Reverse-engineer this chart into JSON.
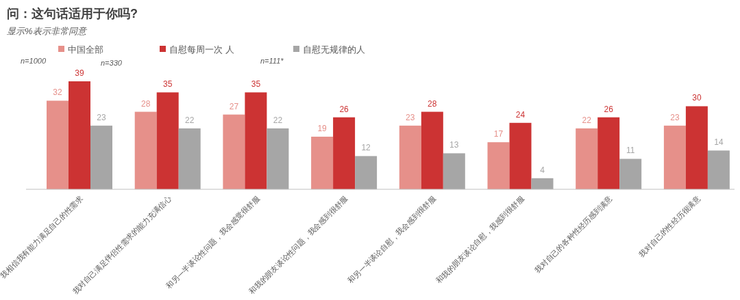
{
  "chart_data": {
    "type": "bar",
    "title": "问：这句话适用于你吗?",
    "subtitle": "显示%表示非常同意",
    "categories": [
      "我相信我有能力满足自己的性需求",
      "我对自己满足伴侣性需求的能力充满信心",
      "和另一半谈论性问题，我会感觉很舒服",
      "和我的朋友谈论性问题，我会感到很舒服",
      "和另一半谈论自慰，我会感到很舒服",
      "和我的朋友谈论自慰，我感到很舒服",
      "我对自己的各种性经历感到满意",
      "我对自己的性经历很满意"
    ],
    "series": [
      {
        "name": "中国全部",
        "color": "#e6908a",
        "values": [
          32,
          28,
          27,
          19,
          23,
          17,
          22,
          23
        ]
      },
      {
        "name": "自慰每周一次 人",
        "color": "#cc3333",
        "values": [
          39,
          35,
          35,
          26,
          28,
          24,
          26,
          30
        ]
      },
      {
        "name": "自慰无规律的人",
        "color": "#a6a6a6",
        "values": [
          23,
          22,
          22,
          12,
          13,
          4,
          11,
          14
        ]
      }
    ],
    "annotations": [
      "n=1000",
      "n=330",
      "n=111*"
    ],
    "data_labels": true,
    "legend": "top left"
  }
}
